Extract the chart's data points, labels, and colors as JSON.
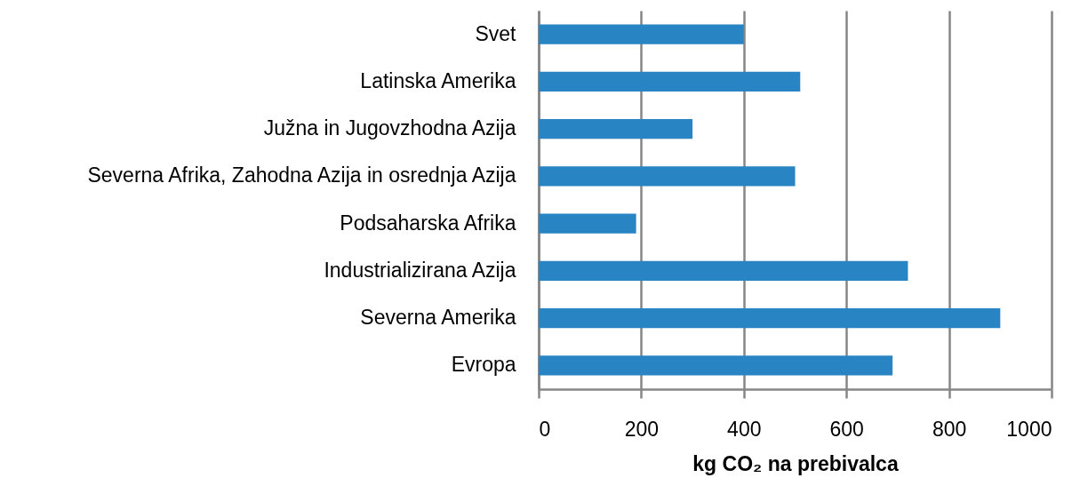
{
  "chart_data": {
    "type": "bar",
    "orientation": "horizontal",
    "categories": [
      "Svet",
      "Latinska Amerika",
      "Južna in Jugovzhodna Azija",
      "Severna Afrika, Zahodna Azija in osrednja Azija",
      "Podsaharska Afrika",
      "Industrializirana Azija",
      "Severna Amerika",
      "Evropa"
    ],
    "values": [
      400,
      510,
      300,
      500,
      190,
      720,
      900,
      690
    ],
    "color": "#2884c2",
    "xlabel": "kg CO₂ na prebivalca",
    "xlim": [
      0,
      1000
    ],
    "xticks": [
      0,
      200,
      400,
      600,
      800,
      1000
    ],
    "grid": "x"
  }
}
